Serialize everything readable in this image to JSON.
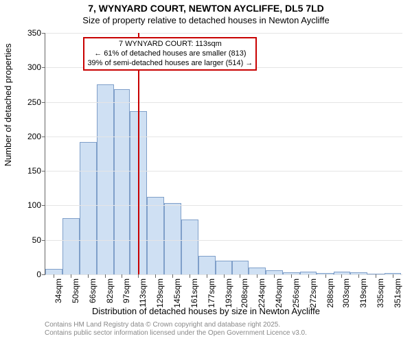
{
  "title_line1": "7, WYNYARD COURT, NEWTON AYCLIFFE, DL5 7LD",
  "title_line2": "Size of property relative to detached houses in Newton Aycliffe",
  "title1_fontsize": 14,
  "title2_fontsize": 13,
  "ylabel": "Number of detached properties",
  "xlabel": "Distribution of detached houses by size in Newton Aycliffe",
  "axis_label_fontsize": 13,
  "chart": {
    "type": "histogram",
    "ylim": [
      0,
      350
    ],
    "ytick_step": 50,
    "yticks": [
      0,
      50,
      100,
      150,
      200,
      250,
      300,
      350
    ],
    "tick_fontsize": 12,
    "grid_color": "#e5e5e5",
    "axis_color": "#666666",
    "background_color": "#ffffff",
    "bar_fill": "#cfe0f3",
    "bar_border": "#7f9fc9",
    "bar_border_width": 1,
    "refline_color": "#c80000",
    "refline_width": 2,
    "refline_x": 113,
    "annotation": {
      "line1": "7 WYNYARD COURT: 113sqm",
      "line2": "← 61% of detached houses are smaller (813)",
      "line3": "39% of semi-detached houses are larger (514) →",
      "border_color": "#c80000",
      "border_width": 2,
      "fontsize": 11
    },
    "x_range": [
      26,
      360
    ],
    "x_tick_labels": [
      "34sqm",
      "50sqm",
      "66sqm",
      "82sqm",
      "97sqm",
      "113sqm",
      "129sqm",
      "145sqm",
      "161sqm",
      "177sqm",
      "193sqm",
      "208sqm",
      "224sqm",
      "240sqm",
      "256sqm",
      "272sqm",
      "288sqm",
      "303sqm",
      "319sqm",
      "335sqm",
      "351sqm"
    ],
    "x_tick_values": [
      34,
      50,
      66,
      82,
      97,
      113,
      129,
      145,
      161,
      177,
      193,
      208,
      224,
      240,
      256,
      272,
      288,
      303,
      319,
      335,
      351
    ],
    "bars": [
      {
        "x0": 26,
        "x1": 42,
        "y": 8
      },
      {
        "x0": 42,
        "x1": 58,
        "y": 82
      },
      {
        "x0": 58,
        "x1": 74,
        "y": 192
      },
      {
        "x0": 74,
        "x1": 90,
        "y": 275
      },
      {
        "x0": 90,
        "x1": 105,
        "y": 268
      },
      {
        "x0": 105,
        "x1": 121,
        "y": 237
      },
      {
        "x0": 121,
        "x1": 137,
        "y": 112
      },
      {
        "x0": 137,
        "x1": 153,
        "y": 103
      },
      {
        "x0": 153,
        "x1": 169,
        "y": 80
      },
      {
        "x0": 169,
        "x1": 185,
        "y": 27
      },
      {
        "x0": 185,
        "x1": 201,
        "y": 20
      },
      {
        "x0": 201,
        "x1": 216,
        "y": 20
      },
      {
        "x0": 216,
        "x1": 232,
        "y": 10
      },
      {
        "x0": 232,
        "x1": 248,
        "y": 6
      },
      {
        "x0": 248,
        "x1": 264,
        "y": 3
      },
      {
        "x0": 264,
        "x1": 280,
        "y": 4
      },
      {
        "x0": 280,
        "x1": 296,
        "y": 2
      },
      {
        "x0": 296,
        "x1": 311,
        "y": 4
      },
      {
        "x0": 311,
        "x1": 327,
        "y": 3
      },
      {
        "x0": 327,
        "x1": 343,
        "y": 0
      },
      {
        "x0": 343,
        "x1": 359,
        "y": 2
      }
    ]
  },
  "attribution_line1": "Contains HM Land Registry data © Crown copyright and database right 2025.",
  "attribution_line2": "Contains public sector information licensed under the Open Government Licence v3.0."
}
